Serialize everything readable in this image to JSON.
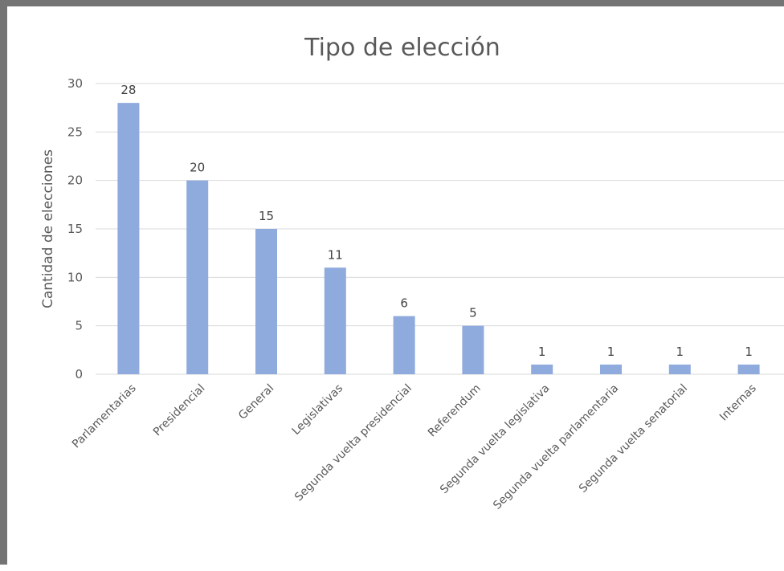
{
  "chart_data": {
    "type": "bar",
    "title": "Tipo de elección",
    "xlabel": "",
    "ylabel": "Cantidad de elecciones",
    "categories": [
      "Parlamentarias",
      "Presidencial",
      "General",
      "Legislativas",
      "Segunda vuelta presidencial",
      "Referendum",
      "Segunda vuelta legislativa",
      "Segunda vuelta parlamentaria",
      "Segunda vuelta senatorial",
      "Internas"
    ],
    "values": [
      28,
      20,
      15,
      11,
      6,
      5,
      1,
      1,
      1,
      1
    ],
    "ylim": [
      0,
      30
    ],
    "yticks": [
      0,
      5,
      10,
      15,
      20,
      25,
      30
    ],
    "grid": true,
    "legend": "none",
    "data_labels": true
  },
  "colors": {
    "bar": "#8faadc",
    "gridline": "#d9d9d9",
    "axis": "#d9d9d9",
    "text": "#595959",
    "frame": "#747474"
  }
}
